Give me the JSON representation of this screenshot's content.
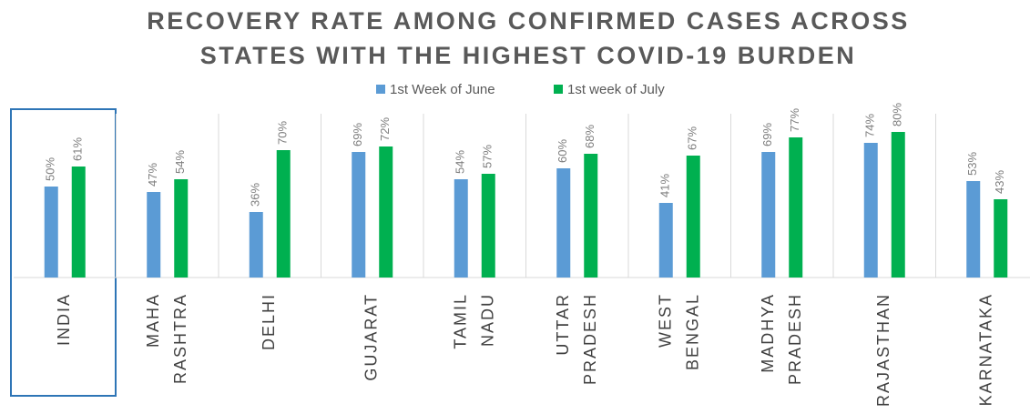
{
  "chart_data": {
    "type": "bar",
    "title": [
      "RECOVERY RATE AMONG CONFIRMED CASES ACROSS",
      "STATES WITH THE HIGHEST COVID-19 BURDEN"
    ],
    "categories": [
      "INDIA",
      "MAHA RASHTRA",
      "DELHI",
      "GUJARAT",
      "TAMIL NADU",
      "UTTAR PRADESH",
      "WEST BENGAL",
      "MADHYA PRADESH",
      "RAJASTHAN",
      "KARNATAKA"
    ],
    "series": [
      {
        "name": "1st Week of June",
        "color": "#5b9bd5",
        "values": [
          50,
          47,
          36,
          69,
          54,
          60,
          41,
          69,
          74,
          53
        ],
        "value_labels": [
          "50%",
          "47%",
          "36%",
          "69%",
          "54%",
          "60%",
          "41%",
          "69%",
          "74%",
          "53%"
        ]
      },
      {
        "name": "1st week of July",
        "color": "#00b050",
        "values": [
          61,
          54,
          70,
          72,
          57,
          68,
          67,
          77,
          80,
          43
        ],
        "value_labels": [
          "61%",
          "54%",
          "70%",
          "72%",
          "57%",
          "68%",
          "67%",
          "77%",
          "80%",
          "43%"
        ]
      }
    ],
    "ylim": [
      0,
      90
    ],
    "legend": "top"
  }
}
